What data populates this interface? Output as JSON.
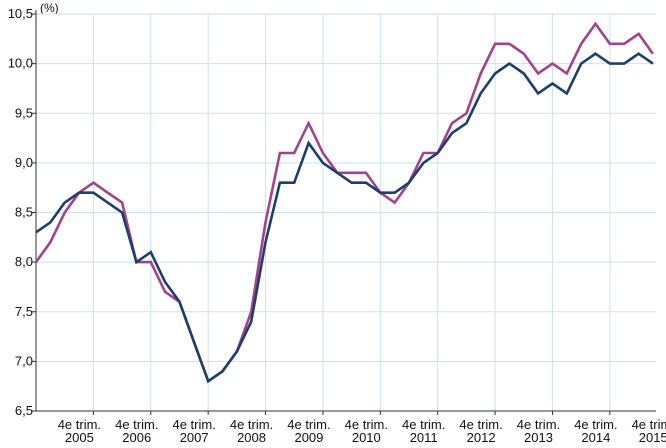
{
  "chart_data": {
    "type": "line",
    "title": "",
    "xlabel": "",
    "ylabel": "",
    "unit_label": "(%)",
    "ylim": [
      6.5,
      10.5
    ],
    "y_ticks": [
      "6,5",
      "7,0",
      "7,5",
      "8,0",
      "8,5",
      "9,0",
      "9,5",
      "10,0",
      "10,5"
    ],
    "y_tick_values": [
      6.5,
      7.0,
      7.5,
      8.0,
      8.5,
      9.0,
      9.5,
      10.0,
      10.5
    ],
    "x_tick_labels": [
      {
        "line1": "4e trim.",
        "line2": "2005",
        "index": 4
      },
      {
        "line1": "4e trim.",
        "line2": "2006",
        "index": 8
      },
      {
        "line1": "4e trim.",
        "line2": "2007",
        "index": 12
      },
      {
        "line1": "4e trim.",
        "line2": "2008",
        "index": 16
      },
      {
        "line1": "4e trim.",
        "line2": "2009",
        "index": 20
      },
      {
        "line1": "4e trim.",
        "line2": "2010",
        "index": 24
      },
      {
        "line1": "4e trim.",
        "line2": "2011",
        "index": 28
      },
      {
        "line1": "4e trim.",
        "line2": "2012",
        "index": 32
      },
      {
        "line1": "4e trim.",
        "line2": "2013",
        "index": 36
      },
      {
        "line1": "4e trim.",
        "line2": "2014",
        "index": 40
      },
      {
        "line1": "4e trim.",
        "line2": "2015",
        "index": 44
      }
    ],
    "grid": true,
    "series": [
      {
        "color": "#a2428f",
        "values": [
          8.0,
          8.2,
          8.5,
          8.7,
          8.8,
          8.7,
          8.6,
          8.0,
          8.0,
          7.7,
          7.6,
          7.2,
          6.8,
          6.9,
          7.1,
          7.5,
          8.4,
          9.1,
          9.1,
          9.4,
          9.1,
          8.9,
          8.9,
          8.9,
          8.7,
          8.6,
          8.8,
          9.1,
          9.1,
          9.4,
          9.5,
          9.9,
          10.2,
          10.2,
          10.1,
          9.9,
          10.0,
          9.9,
          10.2,
          10.4,
          10.2,
          10.2,
          10.3,
          10.1
        ]
      },
      {
        "color": "#1c3f6e",
        "values": [
          8.3,
          8.4,
          8.6,
          8.7,
          8.7,
          8.6,
          8.5,
          8.0,
          8.1,
          7.8,
          7.6,
          7.2,
          6.8,
          6.9,
          7.1,
          7.4,
          8.2,
          8.8,
          8.8,
          9.2,
          9.0,
          8.9,
          8.8,
          8.8,
          8.7,
          8.7,
          8.8,
          9.0,
          9.1,
          9.3,
          9.4,
          9.7,
          9.9,
          10.0,
          9.9,
          9.7,
          9.8,
          9.7,
          10.0,
          10.1,
          10.0,
          10.0,
          10.1,
          10.0
        ]
      }
    ]
  }
}
